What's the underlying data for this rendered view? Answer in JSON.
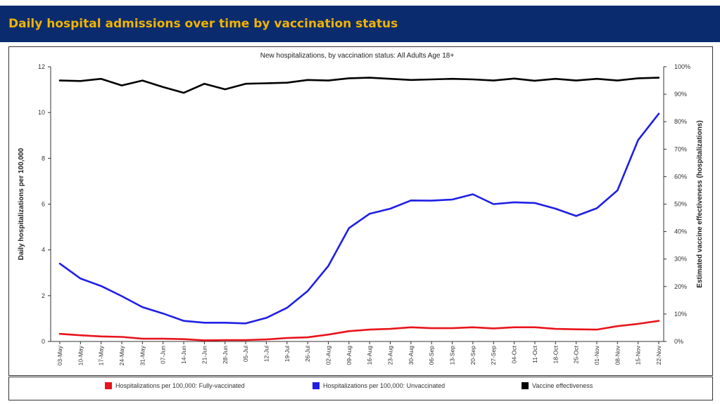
{
  "header": {
    "title": "Daily hospital admissions over time by vaccination status"
  },
  "chart_data": {
    "type": "line",
    "title": "New hospitalizations, by vaccination status: All Adults Age 18+",
    "ylabel": "Daily hospitalizations per 100,000",
    "y2label": "Estimated vaccine effectiveness (hospitalizations)",
    "ylim": [
      0,
      12
    ],
    "y_ticks": [
      "0",
      "2",
      "4",
      "6",
      "8",
      "10",
      "12"
    ],
    "y2lim": [
      0,
      100
    ],
    "y2_ticks": [
      "0%",
      "10%",
      "20%",
      "30%",
      "40%",
      "50%",
      "60%",
      "70%",
      "80%",
      "90%",
      "100%"
    ],
    "categories": [
      "03-May",
      "10-May",
      "17-May",
      "24-May",
      "31-May",
      "07-Jun",
      "14-Jun",
      "21-Jun",
      "28-Jun",
      "05-Jul",
      "12-Jul",
      "19-Jul",
      "26-Jul",
      "02-Aug",
      "09-Aug",
      "16-Aug",
      "23-Aug",
      "30-Aug",
      "06-Sep",
      "13-Sep",
      "20-Sep",
      "27-Sep",
      "04-Oct",
      "11-Oct",
      "18-Oct",
      "25-Oct",
      "01-Nov",
      "08-Nov",
      "15-Nov",
      "22-Nov"
    ],
    "series": [
      {
        "name": "Hospitalizations per 100,000: Fully-vaccinated",
        "color": "#e8141c",
        "axis": "left",
        "values": [
          0.33,
          0.27,
          0.22,
          0.2,
          0.12,
          0.12,
          0.1,
          0.05,
          0.06,
          0.06,
          0.09,
          0.15,
          0.18,
          0.3,
          0.45,
          0.52,
          0.55,
          0.62,
          0.58,
          0.58,
          0.62,
          0.57,
          0.62,
          0.62,
          0.55,
          0.53,
          0.52,
          0.67,
          0.77,
          0.9
        ]
      },
      {
        "name": "Hospitalizations per 100,000: Unvaccinated",
        "color": "#1f1fe6",
        "axis": "left",
        "values": [
          3.4,
          2.75,
          2.42,
          1.98,
          1.5,
          1.22,
          0.9,
          0.82,
          0.82,
          0.79,
          1.03,
          1.47,
          2.2,
          3.3,
          4.95,
          5.58,
          5.8,
          6.16,
          6.15,
          6.2,
          6.43,
          6.0,
          6.08,
          6.05,
          5.8,
          5.48,
          5.82,
          6.6,
          8.8,
          9.95
        ]
      },
      {
        "name": "Vaccine effectiveness",
        "color": "#000000",
        "axis": "right",
        "values": [
          95,
          94.8,
          95.6,
          93.2,
          95,
          92.6,
          90.5,
          93.8,
          91.8,
          93.8,
          94,
          94.2,
          95.2,
          95,
          95.8,
          96,
          95.6,
          95.2,
          95.4,
          95.6,
          95.4,
          95,
          95.7,
          94.9,
          95.6,
          95,
          95.6,
          95,
          95.8,
          96
        ]
      }
    ],
    "grid": false,
    "legend_position": "bottom"
  }
}
